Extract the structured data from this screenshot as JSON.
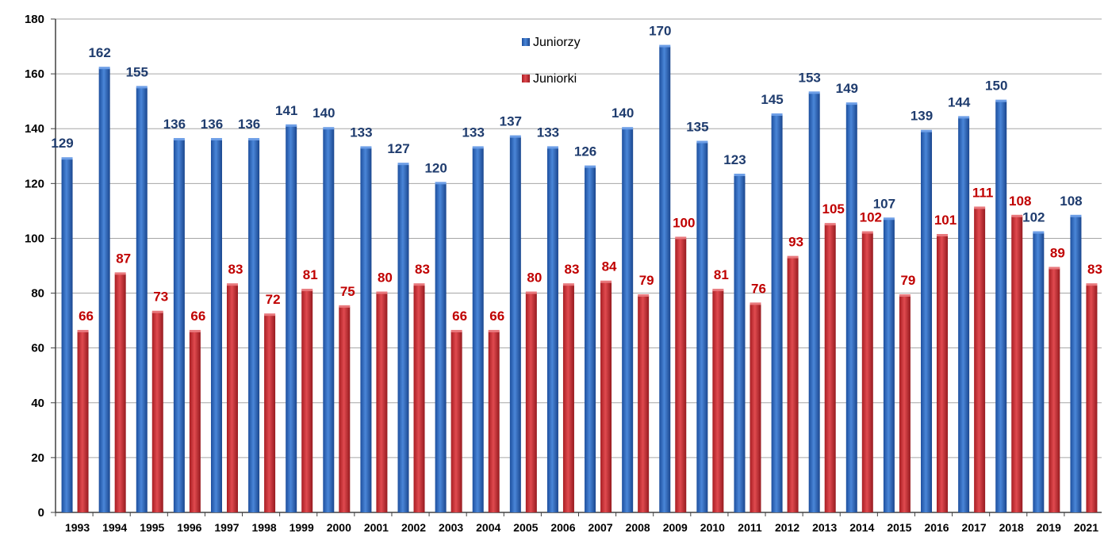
{
  "chart_data": {
    "type": "bar",
    "categories": [
      "1993",
      "1994",
      "1995",
      "1996",
      "1997",
      "1998",
      "1999",
      "2000",
      "2001",
      "2002",
      "2003",
      "2004",
      "2005",
      "2006",
      "2007",
      "2008",
      "2009",
      "2010",
      "2011",
      "2012",
      "2013",
      "2014",
      "2015",
      "2016",
      "2017",
      "2018",
      "2019",
      "2021"
    ],
    "series": [
      {
        "name": "Juniorzy",
        "color": "#2a5fb0",
        "label_color": "#1f3c6e",
        "values": [
          129,
          162,
          155,
          136,
          136,
          136,
          141,
          140,
          133,
          127,
          120,
          133,
          137,
          133,
          126,
          140,
          170,
          135,
          123,
          145,
          153,
          149,
          107,
          139,
          144,
          150,
          102,
          108
        ]
      },
      {
        "name": "Juniorki",
        "color": "#c0272d",
        "label_color": "#c00000",
        "values": [
          66,
          87,
          73,
          66,
          83,
          72,
          81,
          75,
          80,
          83,
          66,
          66,
          80,
          83,
          84,
          79,
          100,
          81,
          76,
          93,
          105,
          102,
          79,
          101,
          111,
          108,
          89,
          83
        ]
      }
    ],
    "ylim": [
      0,
      180
    ],
    "yticks": [
      0,
      20,
      40,
      60,
      80,
      100,
      120,
      140,
      160,
      180
    ],
    "grid": true,
    "legend": "top-center",
    "title": "",
    "xlabel": "",
    "ylabel": ""
  }
}
